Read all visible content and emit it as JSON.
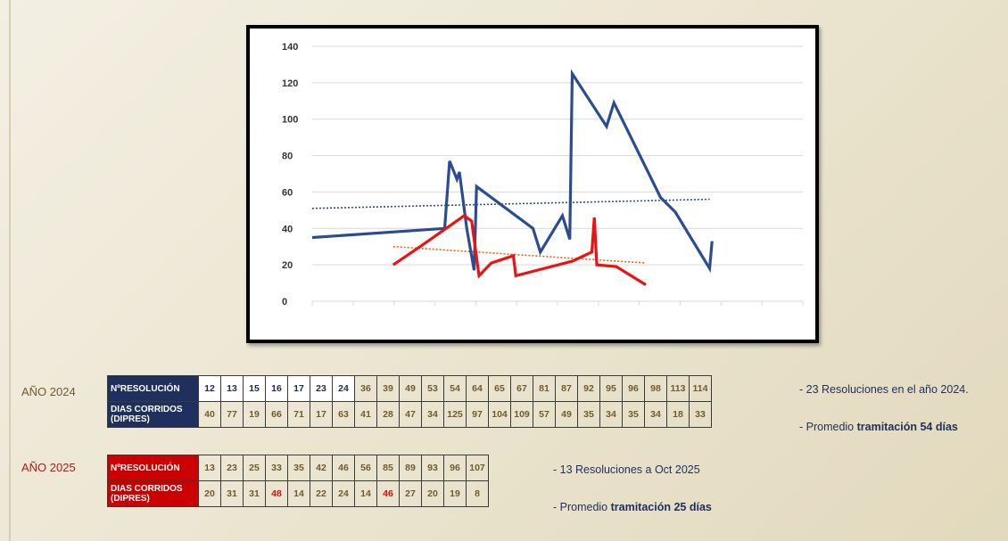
{
  "chart_data": {
    "type": "line",
    "y_ticks": [
      "0",
      "20",
      "40",
      "60",
      "80",
      "100",
      "120",
      "140"
    ],
    "ylim": [
      0,
      140
    ],
    "grid": true,
    "series": [
      {
        "color": "#2b4d8f",
        "points": [
          [
            0,
            35
          ],
          [
            27,
            40
          ],
          [
            28,
            77
          ],
          [
            29.5,
            67
          ],
          [
            30,
            71
          ],
          [
            31.5,
            40
          ],
          [
            33,
            17
          ],
          [
            33.5,
            63
          ],
          [
            45,
            40
          ],
          [
            46.5,
            27
          ],
          [
            51,
            47
          ],
          [
            52.5,
            34
          ],
          [
            53,
            125
          ],
          [
            60,
            96
          ],
          [
            61.5,
            109
          ],
          [
            71,
            57
          ],
          [
            74,
            49
          ],
          [
            81,
            18
          ],
          [
            81.5,
            33
          ]
        ]
      },
      {
        "color": "#ee1111",
        "points": [
          [
            16.5,
            20
          ],
          [
            22,
            30
          ],
          [
            31,
            47
          ],
          [
            32.5,
            44
          ],
          [
            34,
            14
          ],
          [
            36.5,
            21
          ],
          [
            41,
            25
          ],
          [
            41.5,
            14
          ],
          [
            53,
            22
          ],
          [
            57,
            27
          ],
          [
            57.5,
            46
          ],
          [
            58,
            20
          ],
          [
            62,
            19
          ],
          [
            68,
            9
          ]
        ]
      }
    ],
    "trendlines": [
      {
        "color": "#2b4d8f",
        "from": [
          0,
          51
        ],
        "to": [
          81,
          56
        ]
      },
      {
        "color": "#d2691e",
        "from": [
          16.5,
          30
        ],
        "to": [
          68,
          21
        ]
      }
    ]
  },
  "year_2024": {
    "label": "AÑO 2024",
    "header_resolucion": "NºRESOLUCIÓN",
    "header_dias": "DIAS CORRIDOS (DIPRES)",
    "resoluciones": [
      "12",
      "13",
      "15",
      "16",
      "17",
      "23",
      "24",
      "36",
      "39",
      "49",
      "53",
      "54",
      "64",
      "65",
      "67",
      "81",
      "87",
      "92",
      "95",
      "96",
      "98",
      "113",
      "114"
    ],
    "dias": [
      "40",
      "77",
      "19",
      "66",
      "71",
      "17",
      "63",
      "41",
      "28",
      "47",
      "34",
      "125",
      "97",
      "104",
      "109",
      "57",
      "49",
      "35",
      "34",
      "35",
      "34",
      "18",
      "33"
    ],
    "note_1": "- 23 Resoluciones en el año 2024.",
    "note_2_prefix": "- Promedio ",
    "note_2_bold": "tramitación 54 días"
  },
  "year_2025": {
    "label": "AÑO 2025",
    "header_resolucion": "NºRESOLUCIÓN",
    "header_dias": "DIAS CORRIDOS (DIPRES)",
    "resoluciones": [
      "13",
      "23",
      "25",
      "33",
      "35",
      "42",
      "46",
      "56",
      "85",
      "89",
      "93",
      "96",
      "107"
    ],
    "dias": [
      "20",
      "31",
      "31",
      "48",
      "14",
      "22",
      "24",
      "14",
      "46",
      "27",
      "20",
      "19",
      "8"
    ],
    "note_1": "- 13 Resoluciones a Oct 2025",
    "note_2_prefix": "- Promedio ",
    "note_2_bold": "tramitación 25 días"
  }
}
